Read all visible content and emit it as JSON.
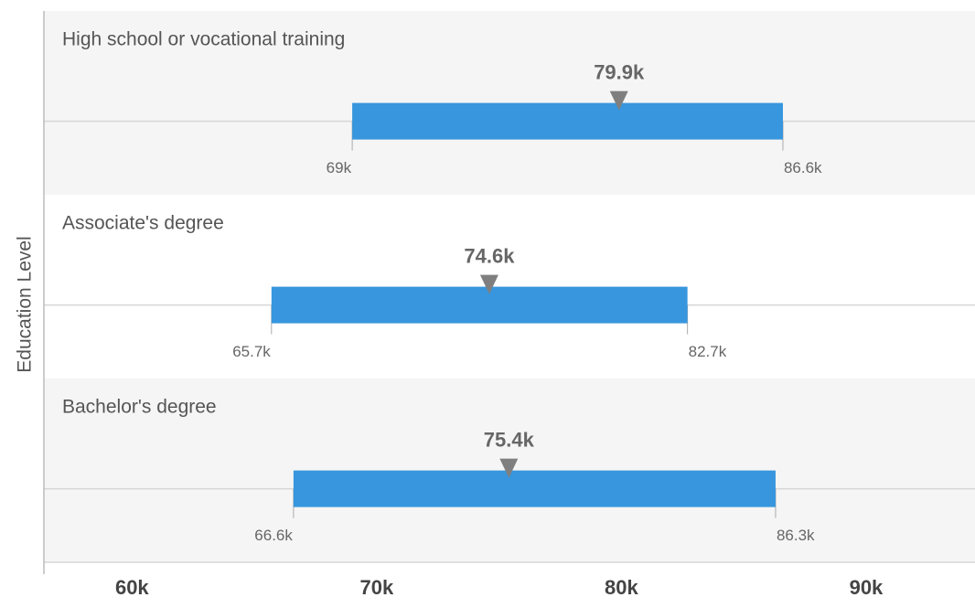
{
  "chart_data": {
    "type": "range_bar",
    "y_axis_label": "Education Level",
    "categories": [
      "High school or vocational training",
      "Associate's degree",
      "Bachelor's degree"
    ],
    "series": [
      {
        "values": [
          69000,
          65700,
          66600
        ],
        "value_labels": [
          "69k",
          "65.7k",
          "66.6k"
        ]
      },
      {
        "values": [
          86600,
          82700,
          86300
        ],
        "value_labels": [
          "86.6k",
          "82.7k",
          "86.3k"
        ]
      },
      {
        "values": [
          79900,
          74600,
          75400
        ],
        "value_labels": [
          "79.9k",
          "74.6k",
          "75.4k"
        ]
      }
    ],
    "color": "#3796dd",
    "marker_color": "#7f7f7f",
    "xlim": [
      56400,
      94450
    ],
    "xticks": [
      {
        "value": 60000,
        "label": "60k"
      },
      {
        "value": 70000,
        "label": "70k"
      },
      {
        "value": 80000,
        "label": "80k"
      },
      {
        "value": 90000,
        "label": "90k"
      }
    ]
  }
}
